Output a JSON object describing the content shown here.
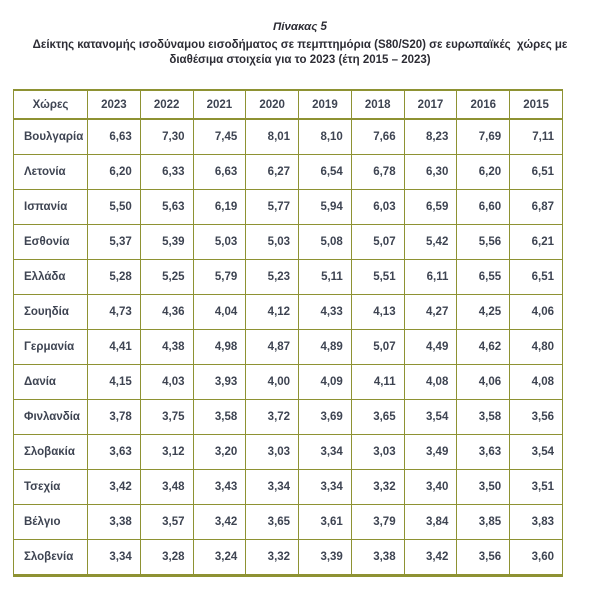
{
  "page": {
    "title": "Πίνακας 5",
    "subtitle_line1": "Δείκτης κατανομής ισοδύναμου εισοδήματος σε πεμπτημόρια (S80/S20) σε ευρωπαϊκές  χώρες με",
    "subtitle_line2": "διαθέσιμα στοιχεία για το 2023 (έτη 2015 – 2023)"
  },
  "colors": {
    "table_border": "#8e9233",
    "table_text": "#3e4452",
    "title_text": "#2d2d35",
    "background": "#ffffff"
  },
  "table": {
    "columns": [
      "Χώρες",
      "2023",
      "2022",
      "2021",
      "2020",
      "2019",
      "2018",
      "2017",
      "2016",
      "2015"
    ],
    "rows": [
      {
        "country": "Βουλγαρία",
        "values": [
          "6,63",
          "7,30",
          "7,45",
          "8,01",
          "8,10",
          "7,66",
          "8,23",
          "7,69",
          "7,11"
        ]
      },
      {
        "country": "Λετονία",
        "values": [
          "6,20",
          "6,33",
          "6,63",
          "6,27",
          "6,54",
          "6,78",
          "6,30",
          "6,20",
          "6,51"
        ]
      },
      {
        "country": "Ισπανία",
        "values": [
          "5,50",
          "5,63",
          "6,19",
          "5,77",
          "5,94",
          "6,03",
          "6,59",
          "6,60",
          "6,87"
        ]
      },
      {
        "country": "Εσθονία",
        "values": [
          "5,37",
          "5,39",
          "5,03",
          "5,03",
          "5,08",
          "5,07",
          "5,42",
          "5,56",
          "6,21"
        ]
      },
      {
        "country": "Ελλάδα",
        "values": [
          "5,28",
          "5,25",
          "5,79",
          "5,23",
          "5,11",
          "5,51",
          "6,11",
          "6,55",
          "6,51"
        ]
      },
      {
        "country": "Σουηδία",
        "values": [
          "4,73",
          "4,36",
          "4,04",
          "4,12",
          "4,33",
          "4,13",
          "4,27",
          "4,25",
          "4,06"
        ]
      },
      {
        "country": "Γερμανία",
        "values": [
          "4,41",
          "4,38",
          "4,98",
          "4,87",
          "4,89",
          "5,07",
          "4,49",
          "4,62",
          "4,80"
        ]
      },
      {
        "country": "Δανία",
        "values": [
          "4,15",
          "4,03",
          "3,93",
          "4,00",
          "4,09",
          "4,11",
          "4,08",
          "4,06",
          "4,08"
        ]
      },
      {
        "country": "Φινλανδία",
        "values": [
          "3,78",
          "3,75",
          "3,58",
          "3,72",
          "3,69",
          "3,65",
          "3,54",
          "3,58",
          "3,56"
        ]
      },
      {
        "country": "Σλοβακία",
        "values": [
          "3,63",
          "3,12",
          "3,20",
          "3,03",
          "3,34",
          "3,03",
          "3,49",
          "3,63",
          "3,54"
        ]
      },
      {
        "country": "Τσεχία",
        "values": [
          "3,42",
          "3,48",
          "3,43",
          "3,34",
          "3,34",
          "3,32",
          "3,40",
          "3,50",
          "3,51"
        ]
      },
      {
        "country": "Βέλγιο",
        "values": [
          "3,38",
          "3,57",
          "3,42",
          "3,65",
          "3,61",
          "3,79",
          "3,84",
          "3,85",
          "3,83"
        ]
      },
      {
        "country": "Σλοβενία",
        "values": [
          "3,34",
          "3,28",
          "3,24",
          "3,32",
          "3,39",
          "3,38",
          "3,42",
          "3,56",
          "3,60"
        ]
      }
    ]
  }
}
